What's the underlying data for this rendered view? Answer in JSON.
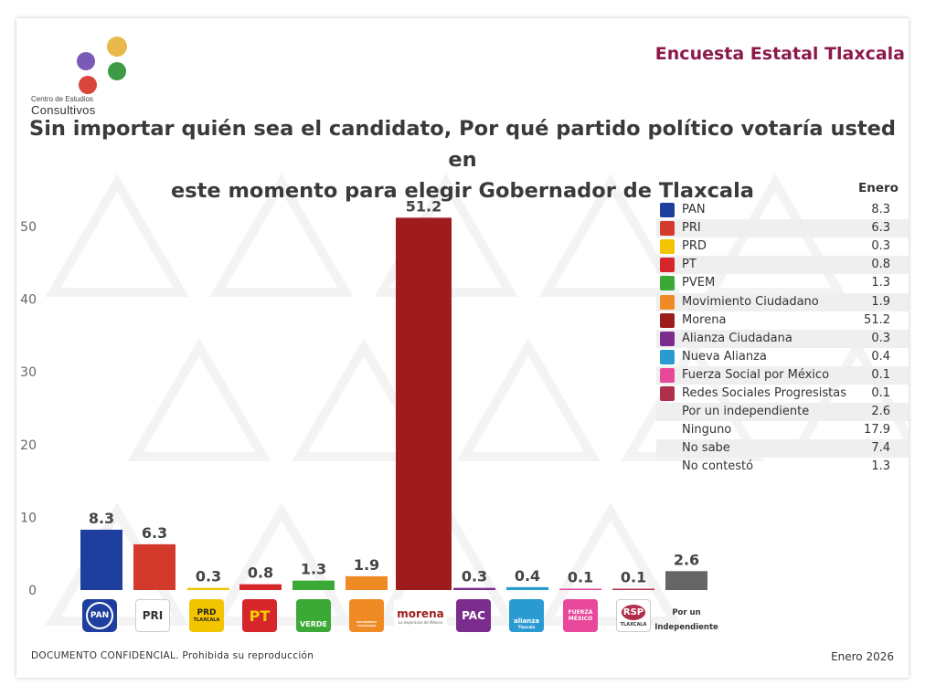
{
  "header": {
    "org_line1": "Centro de Estudios",
    "org_line2": "Consultivos",
    "survey_title": "Encuesta Estatal Tlaxcala"
  },
  "question": {
    "line1": "Sin importar quién sea el candidato, Por qué partido político votaría usted en",
    "line2": "este momento para elegir Gobernador de Tlaxcala"
  },
  "colors": {
    "title": "#8b1a4a",
    "pan": "#1f3f9e",
    "pri": "#d43a2c",
    "prd": "#f2c500",
    "pt": "#d7262b",
    "pvem": "#3aa935",
    "mc": "#f08a24",
    "morena": "#9e1c1d",
    "pac": "#7b2d8e",
    "na": "#2a9bd0",
    "fsm": "#e8489a",
    "rsp": "#b0304b",
    "indep": "#666666"
  },
  "chart_data": {
    "type": "bar",
    "title": "Sin importar quién sea el candidato, Por qué partido político votaría usted en este momento para elegir Gobernador de Tlaxcala",
    "categories": [
      "PAN",
      "PRI",
      "PRD",
      "PT",
      "PVEM",
      "Movimiento Ciudadano",
      "Morena",
      "Alianza Ciudadana",
      "Nueva Alianza",
      "Fuerza Social por México",
      "Redes Sociales Progresistas",
      "Por un Independiente"
    ],
    "values": [
      8.3,
      6.3,
      0.3,
      0.8,
      1.3,
      1.9,
      51.2,
      0.3,
      0.4,
      0.1,
      0.1,
      2.6
    ],
    "data_labels": [
      "8.3",
      "6.3",
      "0.3",
      "0.8",
      "1.3",
      "1.9",
      "51.2",
      "0.3",
      "0.4",
      "0.1",
      "0.1",
      "2.6"
    ],
    "bar_colors": [
      "#1f3f9e",
      "#d43a2c",
      "#f2c500",
      "#d7262b",
      "#3aa935",
      "#f08a24",
      "#9e1c1d",
      "#7b2d8e",
      "#2a9bd0",
      "#e8489a",
      "#b0304b",
      "#666666"
    ],
    "y_ticks": [
      "0",
      "10",
      "20",
      "30",
      "40",
      "50"
    ],
    "y_tick_values": [
      0,
      10,
      20,
      30,
      40,
      50
    ],
    "ylim": [
      0,
      52
    ],
    "xlabel": "",
    "ylabel": "",
    "grid": false
  },
  "axis_logos": {
    "pan": "PAN",
    "pri": "PRI",
    "prd_a": "PRD",
    "prd_b": "TLAXCALA",
    "pt": "PT",
    "pvem": "VERDE",
    "mc": "MOVIMIENTO CIUDADANO",
    "morena_a": "morena",
    "morena_b": "La esperanza de México",
    "pac": "PAC",
    "na_a": "alianza",
    "na_b": "Tlaxcala",
    "fsm_a": "FUERZA",
    "fsm_b": "MÉXICO",
    "rsp_a": "RSP",
    "rsp_b": "TLAXCALA",
    "indep_a": "Por un",
    "indep_b": "Independiente"
  },
  "legend": {
    "header": "Enero",
    "items": [
      {
        "name": "PAN",
        "value": "8.3",
        "icon": "pan-icon",
        "color": "#1f3f9e"
      },
      {
        "name": "PRI",
        "value": "6.3",
        "icon": "pri-icon",
        "color": "#d43a2c"
      },
      {
        "name": "PRD",
        "value": "0.3",
        "icon": "prd-icon",
        "color": "#f2c500"
      },
      {
        "name": "PT",
        "value": "0.8",
        "icon": "pt-icon",
        "color": "#d7262b"
      },
      {
        "name": "PVEM",
        "value": "1.3",
        "icon": "pvem-icon",
        "color": "#3aa935"
      },
      {
        "name": "Movimiento Ciudadano",
        "value": "1.9",
        "icon": "mc-icon",
        "color": "#f08a24"
      },
      {
        "name": "Morena",
        "value": "51.2",
        "icon": "morena-icon",
        "color": "#9e1c1d"
      },
      {
        "name": "Alianza Ciudadana",
        "value": "0.3",
        "icon": "pac-icon",
        "color": "#7b2d8e"
      },
      {
        "name": "Nueva Alianza",
        "value": "0.4",
        "icon": "na-icon",
        "color": "#2a9bd0"
      },
      {
        "name": "Fuerza Social por México",
        "value": "0.1",
        "icon": "fsm-icon",
        "color": "#e8489a"
      },
      {
        "name": "Redes Sociales Progresistas",
        "value": "0.1",
        "icon": "rsp-icon",
        "color": "#b0304b"
      },
      {
        "name": "Por un independiente",
        "value": "2.6",
        "icon": "",
        "color": ""
      },
      {
        "name": "Ninguno",
        "value": "17.9",
        "icon": "",
        "color": ""
      },
      {
        "name": "No sabe",
        "value": "7.4",
        "icon": "",
        "color": ""
      },
      {
        "name": "No contestó",
        "value": "1.3",
        "icon": "",
        "color": ""
      }
    ]
  },
  "footer": {
    "left": "DOCUMENTO CONFIDENCIAL. Prohibida su reproducción",
    "right": "Enero 2026"
  }
}
